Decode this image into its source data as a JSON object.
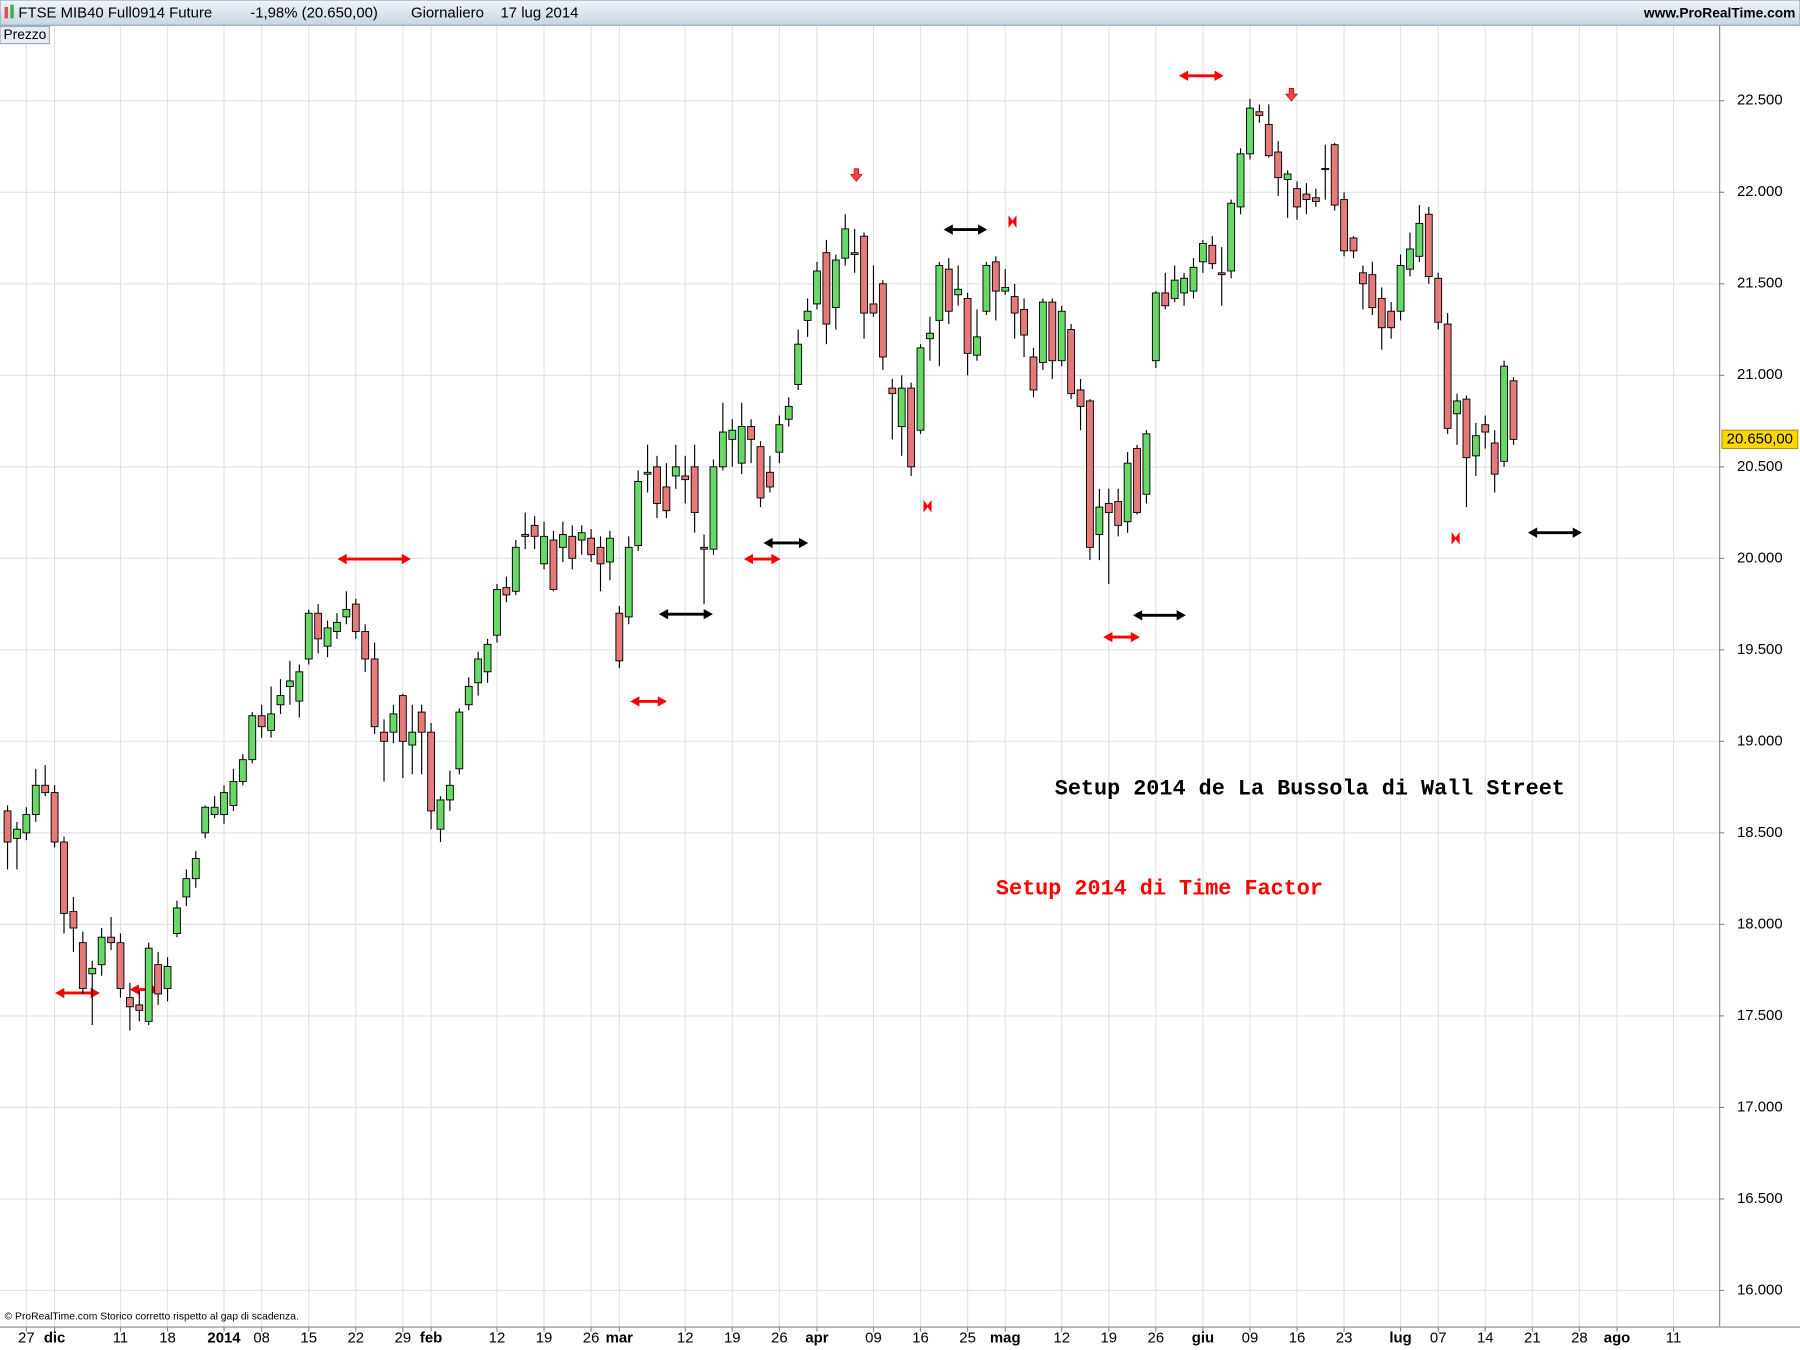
{
  "chart_data": {
    "type": "candlestick",
    "header": {
      "symbol": "FTSE MIB40 Full0914 Future",
      "change": "-1,98% (20.650,00)",
      "period": "Giornaliero",
      "date": "17 lug 2014",
      "site": "www.ProRealTime.com"
    },
    "panel_label": "Prezzo",
    "footer": "© ProRealTime.com Storico corretto rispetto al gap di scadenza.",
    "annotations": [
      {
        "text": "Setup 2014 de La Bussola di Wall Street",
        "color": "#000000"
      },
      {
        "text": "Setup 2014 di Time Factor",
        "color": "#ff0000"
      }
    ],
    "up_color": "#66d966",
    "down_color": "#e67a7a",
    "grid": true,
    "last_price": {
      "value": 20650,
      "label": "20.650,00"
    },
    "xlim": [
      -0.8,
      181.9
    ],
    "xticks": [
      {
        "value": 2,
        "label": "27"
      },
      {
        "value": 5,
        "label": "dic"
      },
      {
        "value": 12,
        "label": "11"
      },
      {
        "value": 17,
        "label": "18"
      },
      {
        "value": 23,
        "label": "2014"
      },
      {
        "value": 27,
        "label": "08"
      },
      {
        "value": 32,
        "label": "15"
      },
      {
        "value": 37,
        "label": "22"
      },
      {
        "value": 42,
        "label": "29"
      },
      {
        "value": 45,
        "label": "feb"
      },
      {
        "value": 52,
        "label": "12"
      },
      {
        "value": 57,
        "label": "19"
      },
      {
        "value": 62,
        "label": "26"
      },
      {
        "value": 65,
        "label": "mar"
      },
      {
        "value": 72,
        "label": "12"
      },
      {
        "value": 77,
        "label": "19"
      },
      {
        "value": 82,
        "label": "26"
      },
      {
        "value": 86,
        "label": "apr"
      },
      {
        "value": 92,
        "label": "09"
      },
      {
        "value": 97,
        "label": "16"
      },
      {
        "value": 102,
        "label": "25"
      },
      {
        "value": 106,
        "label": "mag"
      },
      {
        "value": 112,
        "label": "12"
      },
      {
        "value": 117,
        "label": "19"
      },
      {
        "value": 122,
        "label": "26"
      },
      {
        "value": 127,
        "label": "giu"
      },
      {
        "value": 132,
        "label": "09"
      },
      {
        "value": 137,
        "label": "16"
      },
      {
        "value": 142,
        "label": "23"
      },
      {
        "value": 148,
        "label": "lug"
      },
      {
        "value": 152,
        "label": "07"
      },
      {
        "value": 157,
        "label": "14"
      },
      {
        "value": 162,
        "label": "21"
      },
      {
        "value": 167,
        "label": "28"
      },
      {
        "value": 171,
        "label": "ago"
      },
      {
        "value": 177,
        "label": "11"
      }
    ],
    "ylim": [
      15800,
      22900
    ],
    "yticks": [
      {
        "value": 16000,
        "label": "16.000"
      },
      {
        "value": 16500,
        "label": "16.500"
      },
      {
        "value": 17000,
        "label": "17.000"
      },
      {
        "value": 17500,
        "label": "17.500"
      },
      {
        "value": 18000,
        "label": "18.000"
      },
      {
        "value": 18500,
        "label": "18.500"
      },
      {
        "value": 19000,
        "label": "19.000"
      },
      {
        "value": 19500,
        "label": "19.500"
      },
      {
        "value": 20000,
        "label": "20.000"
      },
      {
        "value": 20500,
        "label": "20.500"
      },
      {
        "value": 21000,
        "label": "21.000"
      },
      {
        "value": 21500,
        "label": "21.500"
      },
      {
        "value": 22000,
        "label": "22.000"
      },
      {
        "value": 22500,
        "label": "22.500"
      }
    ],
    "open": [
      18620,
      18470,
      18500,
      18600,
      18760,
      18720,
      18450,
      18070,
      17900,
      17730,
      17780,
      17930,
      17900,
      17600,
      17560,
      17470,
      17780,
      17650,
      17950,
      18150,
      18250,
      18500,
      18600,
      18600,
      18650,
      18780,
      18900,
      19140,
      19060,
      19200,
      19300,
      19220,
      19450,
      19700,
      19520,
      19600,
      19680,
      19750,
      19600,
      19450,
      19050,
      19050,
      19250,
      18980,
      19160,
      19050,
      18520,
      18680,
      18850,
      19200,
      19320,
      19380,
      19580,
      19840,
      19820,
      20130,
      20180,
      19970,
      20100,
      20060,
      20120,
      20100,
      20110,
      20060,
      19980,
      19700,
      19680,
      20070,
      20460,
      20500,
      20390,
      20450,
      20450,
      20500,
      20060,
      20050,
      20500,
      20650,
      20520,
      20720,
      20610,
      20470,
      20580,
      20760,
      20950,
      21300,
      21390,
      21670,
      21370,
      21640,
      21670,
      21760,
      21390,
      21500,
      20930,
      20720,
      20930,
      20700,
      21200,
      21300,
      21580,
      21440,
      21420,
      21110,
      21350,
      21620,
      21460,
      21430,
      21360,
      21100,
      21070,
      21400,
      21080,
      21250,
      20920,
      20860,
      20130,
      20300,
      20310,
      20200,
      20600,
      20350,
      21080,
      21450,
      21420,
      21450,
      21460,
      21620,
      21710,
      21560,
      21570,
      21920,
      22210,
      22440,
      22370,
      22220,
      22070,
      22020,
      21990,
      21970,
      22130,
      22260,
      21960,
      21750,
      21560,
      21550,
      21420,
      21350,
      21350,
      21580,
      21650,
      21880,
      21530,
      21280,
      20790,
      20870,
      20560,
      20730,
      20630,
      20530,
      20970
    ],
    "high": [
      18650,
      18560,
      18640,
      18850,
      18870,
      18760,
      18480,
      18150,
      17960,
      17800,
      17980,
      18040,
      17950,
      17680,
      17640,
      17900,
      17850,
      17820,
      18130,
      18300,
      18400,
      18650,
      18700,
      18760,
      18850,
      18930,
      19160,
      19200,
      19300,
      19340,
      19440,
      19420,
      19720,
      19750,
      19660,
      19700,
      19820,
      19780,
      19640,
      19540,
      19120,
      19200,
      19260,
      19200,
      19200,
      19100,
      18700,
      18840,
      19180,
      19350,
      19490,
      19560,
      19860,
      19900,
      20100,
      20250,
      20230,
      20200,
      20150,
      20200,
      20180,
      20180,
      20160,
      20120,
      20150,
      19740,
      20120,
      20480,
      20620,
      20560,
      20520,
      20620,
      20560,
      20620,
      20130,
      20540,
      20850,
      20760,
      20850,
      20760,
      20640,
      20560,
      20780,
      20880,
      21250,
      21420,
      21620,
      21740,
      21660,
      21880,
      21800,
      21780,
      21600,
      21520,
      20980,
      21000,
      20960,
      21170,
      21320,
      21620,
      21640,
      21600,
      21450,
      21360,
      21620,
      21650,
      21580,
      21500,
      21420,
      21150,
      21420,
      21420,
      21380,
      21280,
      20980,
      20870,
      20380,
      20380,
      20380,
      20580,
      20620,
      20700,
      21460,
      21560,
      21600,
      21560,
      21640,
      21740,
      21760,
      21700,
      21960,
      22240,
      22510,
      22480,
      22480,
      22280,
      22120,
      22060,
      22050,
      22020,
      22260,
      22270,
      22000,
      21760,
      21600,
      21620,
      21480,
      21400,
      21660,
      21780,
      21930,
      21920,
      21560,
      21340,
      20900,
      20890,
      20740,
      20780,
      20700,
      21080,
      20990
    ],
    "low": [
      18300,
      18300,
      18460,
      18560,
      18700,
      18420,
      17950,
      17850,
      17620,
      17450,
      17720,
      17860,
      17600,
      17420,
      17470,
      17450,
      17560,
      17580,
      17930,
      18100,
      18200,
      18470,
      18580,
      18550,
      18620,
      18760,
      18880,
      19020,
      19020,
      19150,
      19200,
      19130,
      19420,
      19480,
      19460,
      19560,
      19640,
      19560,
      19380,
      19040,
      18780,
      18990,
      18800,
      18820,
      18820,
      18520,
      18450,
      18620,
      18820,
      19170,
      19250,
      19320,
      19540,
      19760,
      19800,
      20050,
      20050,
      19940,
      19820,
      19980,
      19940,
      20020,
      19980,
      19820,
      19880,
      19400,
      19640,
      20040,
      20360,
      20220,
      20220,
      20380,
      20300,
      20140,
      19750,
      20020,
      20480,
      20500,
      20460,
      20520,
      20280,
      20360,
      20520,
      20720,
      20920,
      21210,
      21360,
      21170,
      21250,
      21600,
      21560,
      21200,
      21320,
      21030,
      20650,
      20560,
      20450,
      20680,
      21080,
      21050,
      21280,
      21380,
      21000,
      21080,
      21330,
      21300,
      21440,
      21200,
      21100,
      20880,
      21030,
      20980,
      21050,
      20870,
      20700,
      19990,
      19990,
      19860,
      20120,
      20140,
      20240,
      20300,
      21040,
      21360,
      21400,
      21380,
      21420,
      21560,
      21580,
      21380,
      21530,
      21880,
      22180,
      22380,
      22190,
      21980,
      21860,
      21850,
      21880,
      21920,
      21960,
      21900,
      21650,
      21640,
      21360,
      21330,
      21140,
      21200,
      21300,
      21540,
      21620,
      21500,
      21250,
      20680,
      20620,
      20280,
      20450,
      20600,
      20360,
      20500,
      20620
    ],
    "close": [
      18450,
      18520,
      18600,
      18760,
      18720,
      18450,
      18060,
      17980,
      17650,
      17760,
      17930,
      17900,
      17650,
      17550,
      17530,
      17870,
      17620,
      17770,
      18090,
      18250,
      18360,
      18640,
      18640,
      18720,
      18780,
      18900,
      19140,
      19080,
      19150,
      19250,
      19330,
      19380,
      19700,
      19560,
      19620,
      19650,
      19720,
      19600,
      19450,
      19080,
      19000,
      19150,
      19000,
      19050,
      19050,
      18620,
      18680,
      18760,
      19160,
      19300,
      19450,
      19530,
      19830,
      19800,
      20060,
      20120,
      20120,
      20120,
      19830,
      20130,
      20000,
      20140,
      20020,
      19970,
      20110,
      19440,
      20060,
      20420,
      20470,
      20300,
      20260,
      20500,
      20430,
      20250,
      20050,
      20500,
      20690,
      20700,
      20720,
      20650,
      20330,
      20390,
      20730,
      20830,
      21170,
      21350,
      21570,
      21280,
      21630,
      21800,
      21660,
      21340,
      21340,
      21100,
      20900,
      20930,
      20500,
      21150,
      21230,
      21600,
      21350,
      21470,
      21120,
      21210,
      21600,
      21460,
      21480,
      21340,
      21220,
      20920,
      21400,
      21080,
      21350,
      20900,
      20830,
      20060,
      20280,
      20250,
      20180,
      20520,
      20250,
      20680,
      21450,
      21380,
      21520,
      21530,
      21590,
      21720,
      21610,
      21550,
      21940,
      22210,
      22460,
      22420,
      22200,
      22080,
      22100,
      21920,
      21960,
      21950,
      22130,
      21930,
      21680,
      21680,
      21500,
      21370,
      21260,
      21260,
      21600,
      21690,
      21830,
      21540,
      21290,
      20710,
      20860,
      20550,
      20670,
      20690,
      20460,
      21050,
      20650
    ]
  }
}
